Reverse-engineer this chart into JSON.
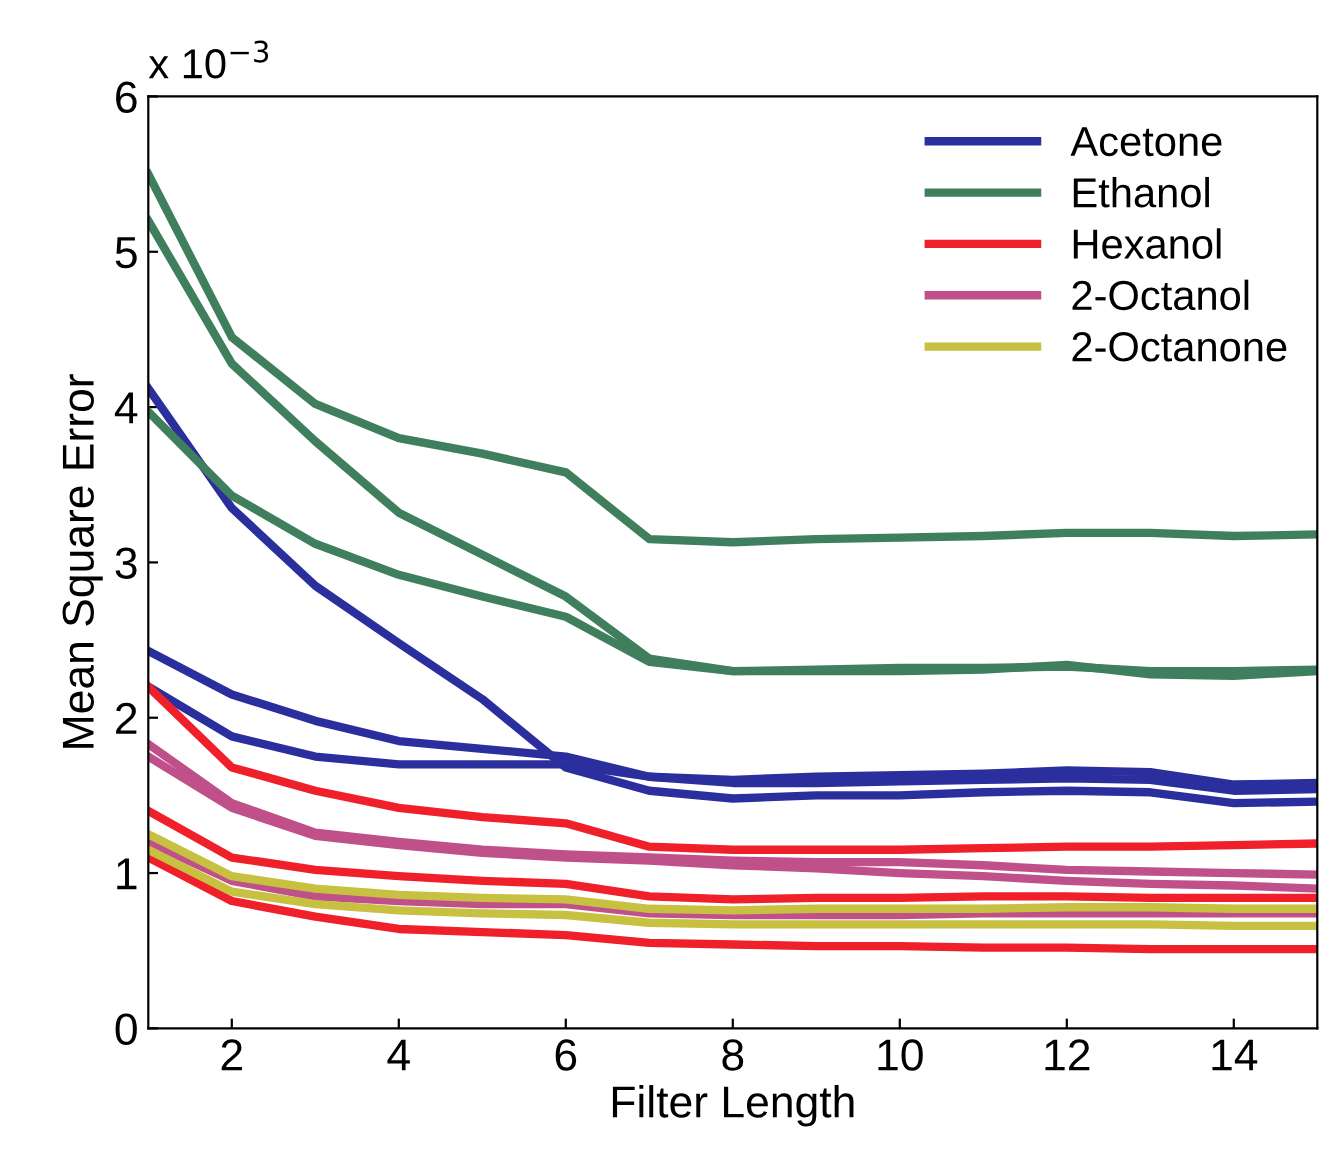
{
  "chart_data": {
    "type": "line",
    "xlabel": "Filter Length",
    "ylabel": "Mean Square Error",
    "annotations": [
      "x 10$^{−3}$"
    ],
    "x": [
      1,
      2,
      3,
      4,
      5,
      6,
      7,
      8,
      9,
      10,
      11,
      12,
      13,
      14,
      15
    ],
    "xlim": [
      1,
      15
    ],
    "xticks": [
      2,
      4,
      6,
      8,
      10,
      12,
      14
    ],
    "ylim": [
      0,
      6
    ],
    "yticks": [
      0,
      1,
      2,
      3,
      4,
      5,
      6
    ],
    "grid": false,
    "legend": "top right",
    "marker": "none",
    "line_style": "solid",
    "series": [
      {
        "name": "Acetone",
        "color": "#2b2f9e",
        "values": [
          4.12,
          3.35,
          2.85,
          2.48,
          2.12,
          1.68,
          1.53,
          1.48,
          1.5,
          1.5,
          1.52,
          1.53,
          1.52,
          1.45,
          1.46
        ]
      },
      {
        "color": "#2b2f9e",
        "values": [
          2.43,
          2.15,
          1.98,
          1.85,
          1.8,
          1.75,
          1.62,
          1.6,
          1.62,
          1.63,
          1.64,
          1.66,
          1.65,
          1.57,
          1.58
        ]
      },
      {
        "color": "#2b2f9e",
        "values": [
          2.2,
          1.88,
          1.75,
          1.7,
          1.7,
          1.7,
          1.62,
          1.58,
          1.58,
          1.59,
          1.6,
          1.61,
          1.6,
          1.53,
          1.54
        ]
      },
      {
        "name": "Ethanol",
        "color": "#3f7f5e",
        "values": [
          5.5,
          4.45,
          4.02,
          3.8,
          3.7,
          3.58,
          3.15,
          3.13,
          3.15,
          3.16,
          3.17,
          3.19,
          3.19,
          3.17,
          3.18
        ]
      },
      {
        "color": "#3f7f5e",
        "values": [
          5.2,
          4.28,
          3.78,
          3.32,
          3.05,
          2.78,
          2.38,
          2.3,
          2.31,
          2.32,
          2.32,
          2.33,
          2.3,
          2.3,
          2.31
        ]
      },
      {
        "color": "#3f7f5e",
        "values": [
          3.97,
          3.43,
          3.12,
          2.92,
          2.78,
          2.65,
          2.36,
          2.3,
          2.3,
          2.3,
          2.31,
          2.34,
          2.28,
          2.27,
          2.3
        ]
      },
      {
        "name": "Hexanol",
        "color": "#f0202a",
        "values": [
          2.2,
          1.68,
          1.53,
          1.42,
          1.36,
          1.32,
          1.17,
          1.15,
          1.15,
          1.15,
          1.16,
          1.17,
          1.17,
          1.18,
          1.19
        ]
      },
      {
        "color": "#f0202a",
        "values": [
          1.4,
          1.1,
          1.02,
          0.98,
          0.95,
          0.93,
          0.85,
          0.83,
          0.84,
          0.84,
          0.85,
          0.85,
          0.84,
          0.84,
          0.84
        ]
      },
      {
        "color": "#f0202a",
        "values": [
          1.1,
          0.82,
          0.72,
          0.64,
          0.62,
          0.6,
          0.55,
          0.54,
          0.53,
          0.53,
          0.52,
          0.52,
          0.51,
          0.51,
          0.51
        ]
      },
      {
        "name": "2-Octanol",
        "color": "#c0508a",
        "values": [
          1.83,
          1.45,
          1.26,
          1.2,
          1.15,
          1.12,
          1.1,
          1.08,
          1.07,
          1.07,
          1.05,
          1.02,
          1.01,
          1.0,
          0.99
        ]
      },
      {
        "color": "#c0508a",
        "values": [
          1.75,
          1.42,
          1.24,
          1.18,
          1.13,
          1.1,
          1.08,
          1.05,
          1.03,
          1.0,
          0.98,
          0.95,
          0.93,
          0.92,
          0.9
        ]
      },
      {
        "color": "#c0508a",
        "values": [
          1.2,
          0.95,
          0.85,
          0.82,
          0.8,
          0.8,
          0.74,
          0.73,
          0.73,
          0.73,
          0.74,
          0.74,
          0.74,
          0.74,
          0.74
        ]
      },
      {
        "name": "2-Octanone",
        "color": "#c8c040",
        "values": [
          1.25,
          0.98,
          0.9,
          0.86,
          0.84,
          0.83,
          0.77,
          0.76,
          0.77,
          0.77,
          0.77,
          0.78,
          0.78,
          0.77,
          0.77
        ]
      },
      {
        "color": "#c8c040",
        "values": [
          1.15,
          0.88,
          0.8,
          0.76,
          0.74,
          0.73,
          0.68,
          0.67,
          0.67,
          0.67,
          0.67,
          0.67,
          0.67,
          0.66,
          0.66
        ]
      }
    ]
  }
}
